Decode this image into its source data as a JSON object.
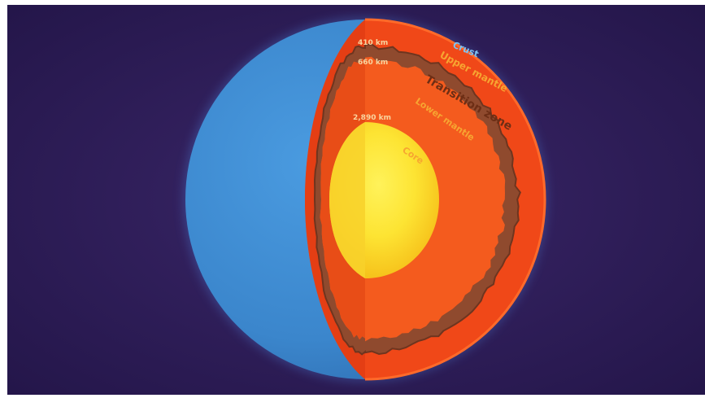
{
  "labels": {
    "crust": "Crust",
    "upper_mantle": "Upper mantle",
    "transition_zone": "Transition zone",
    "lower_mantle": "Lower mantle",
    "core": "Core",
    "depth_410": "410 km",
    "depth_660": "660 km",
    "depth_2890": "2,890 km"
  },
  "colors": {
    "background": "#2c1a55",
    "surface_blue": "#3f8fd4",
    "crust": "#f34a1a",
    "upper_mantle": "#f35a1e",
    "transition_zone": "#8e4c30",
    "lower_mantle": "#f4601f",
    "core_outer": "#f3c419",
    "core_inner": "#fde93a",
    "label_light": "#f9d5a0",
    "label_orange": "#f7a531",
    "label_brown": "#6d2e15",
    "label_blue": "#7fc3f3"
  }
}
